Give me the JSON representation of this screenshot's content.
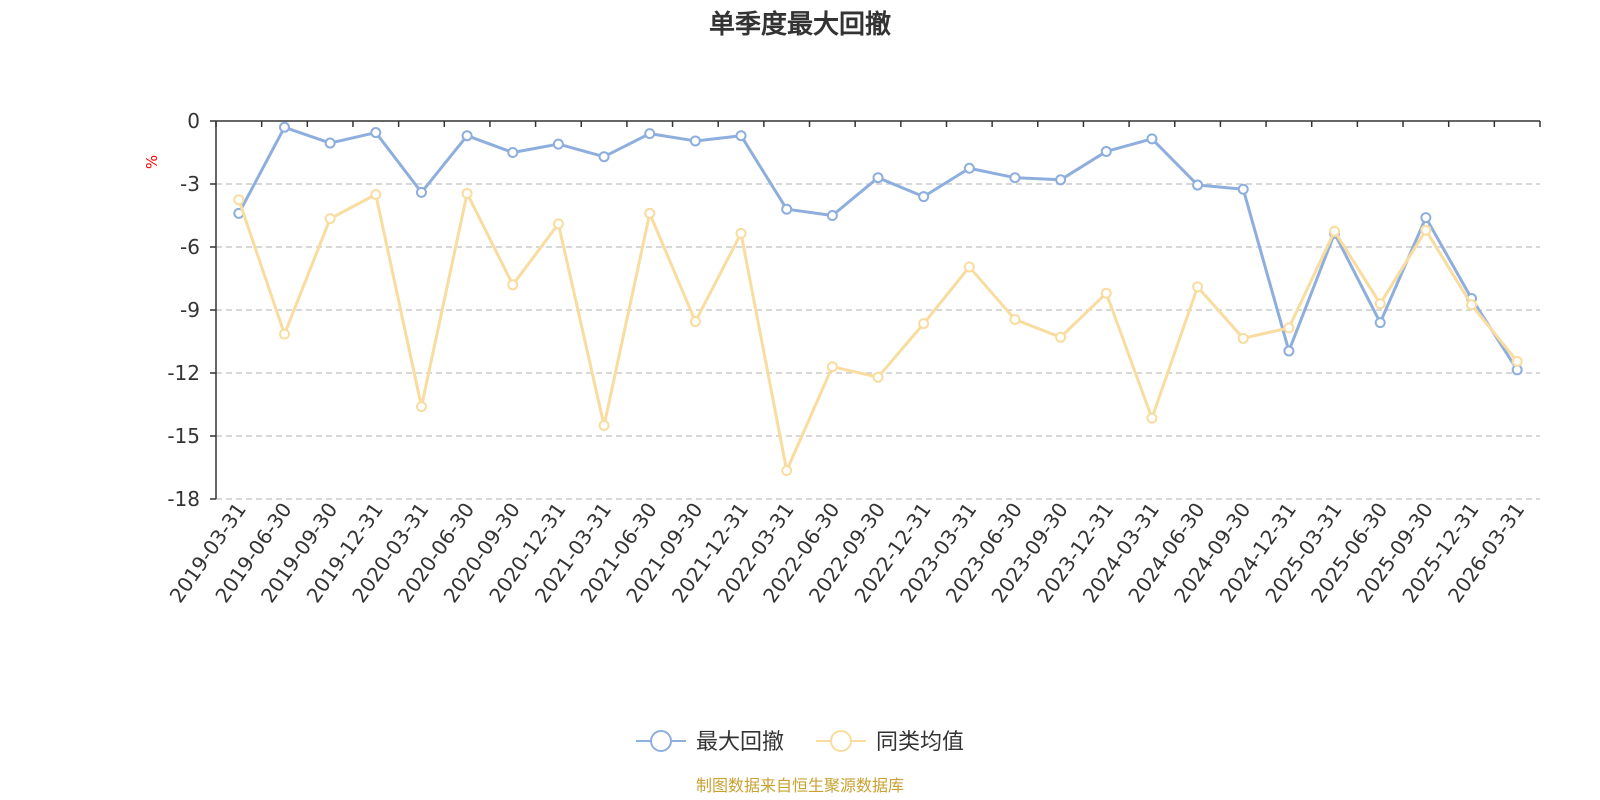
{
  "chart_data": {
    "type": "line",
    "title": "单季度最大回撤",
    "ylabel": "%",
    "xlabel": "",
    "ylim": [
      -18,
      0
    ],
    "yticks": [
      0,
      -3,
      -6,
      -9,
      -12,
      -15,
      -18
    ],
    "grid": true,
    "legend_position": "bottom",
    "categories": [
      "2019-03-31",
      "2019-06-30",
      "2019-09-30",
      "2019-12-31",
      "2020-03-31",
      "2020-06-30",
      "2020-09-30",
      "2020-12-31",
      "2021-03-31",
      "2021-06-30",
      "2021-09-30",
      "2021-12-31",
      "2022-03-31",
      "2022-06-30",
      "2022-09-30",
      "2022-12-31",
      "2023-03-31",
      "2023-06-30",
      "2023-09-30",
      "2023-12-31",
      "2024-03-31",
      "2024-06-30",
      "2024-09-30",
      "2024-12-31",
      "2025-03-31",
      "2025-06-30",
      "2025-09-30",
      "2025-12-31",
      "2026-03-31"
    ],
    "series": [
      {
        "name": "最大回撤",
        "color": "#8eaedd",
        "values": [
          -4.4,
          -0.3,
          -1.05,
          -0.55,
          -3.4,
          -0.7,
          -1.5,
          -1.1,
          -1.7,
          -0.6,
          -0.95,
          -0.7,
          -4.2,
          -4.5,
          -2.7,
          -3.6,
          -2.25,
          -2.7,
          -2.8,
          -1.45,
          -0.85,
          -3.05,
          -3.25,
          -10.95,
          -5.35,
          -9.6,
          -4.6,
          -8.45,
          -11.85
        ]
      },
      {
        "name": "同类均值",
        "color": "#f9dc9f",
        "values": [
          -3.75,
          -10.15,
          -4.65,
          -3.5,
          -13.6,
          -3.45,
          -7.8,
          -4.9,
          -14.5,
          -4.4,
          -9.55,
          -5.35,
          -16.65,
          -11.7,
          -12.2,
          -9.65,
          -6.95,
          -9.45,
          -10.3,
          -8.2,
          -14.15,
          -7.9,
          -10.35,
          -9.85,
          -5.25,
          -8.7,
          -5.2,
          -8.75,
          -11.45
        ]
      }
    ],
    "source_note": "制图数据来自恒生聚源数据库"
  }
}
